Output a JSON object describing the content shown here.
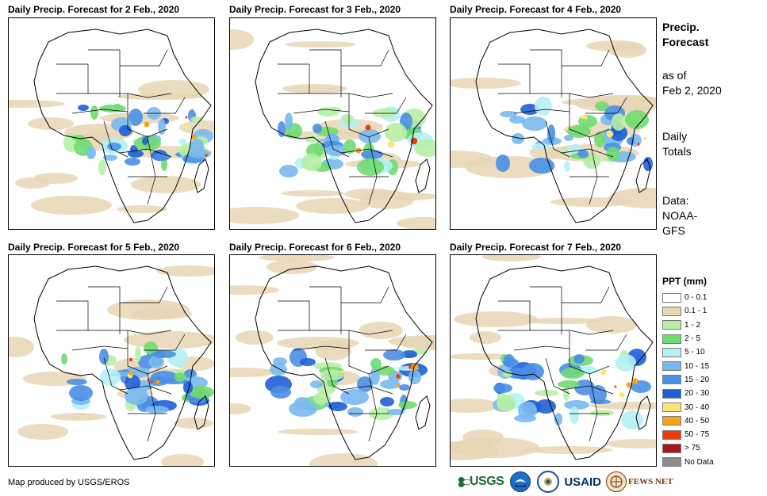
{
  "panels": [
    {
      "title": "Daily Precip. Forecast for 2 Feb., 2020"
    },
    {
      "title": "Daily Precip. Forecast for 3 Feb., 2020"
    },
    {
      "title": "Daily Precip. Forecast for 4 Feb., 2020"
    },
    {
      "title": "Daily Precip. Forecast for 5 Feb., 2020"
    },
    {
      "title": "Daily Precip. Forecast for 6 Feb., 2020"
    },
    {
      "title": "Daily Precip. Forecast for 7 Feb., 2020"
    }
  ],
  "side": {
    "title_line1": "Precip.",
    "title_line2": "Forecast",
    "asof_line1": "as of",
    "asof_line2": "Feb 2, 2020",
    "totals_line1": "Daily",
    "totals_line2": "Totals",
    "data_line1": "Data:",
    "data_line2": "NOAA-",
    "data_line3": "GFS"
  },
  "legend": {
    "title": "PPT (mm)",
    "items": [
      {
        "label": "0 - 0.1",
        "color": "#ffffff"
      },
      {
        "label": "0.1 - 1",
        "color": "#e8d6b4"
      },
      {
        "label": "1 - 2",
        "color": "#b7f0a4"
      },
      {
        "label": "2 - 5",
        "color": "#6fdc6f"
      },
      {
        "label": "5 - 10",
        "color": "#b4f0f6"
      },
      {
        "label": "10 - 15",
        "color": "#79b9ee"
      },
      {
        "label": "15 - 20",
        "color": "#4a8fe6"
      },
      {
        "label": "20 - 30",
        "color": "#1f5fd6"
      },
      {
        "label": "30 - 40",
        "color": "#fbe57a"
      },
      {
        "label": "40 - 50",
        "color": "#f7a51d"
      },
      {
        "label": "50 - 75",
        "color": "#f03c0c"
      },
      {
        "label": "> 75",
        "color": "#a4191b"
      },
      {
        "label": "No Data",
        "color": "#8c8c8c"
      }
    ]
  },
  "credit": "Map produced by USGS/EROS",
  "logos": {
    "usgs": "USGS",
    "usaid": "USAID",
    "fews": "FEWS NET"
  }
}
